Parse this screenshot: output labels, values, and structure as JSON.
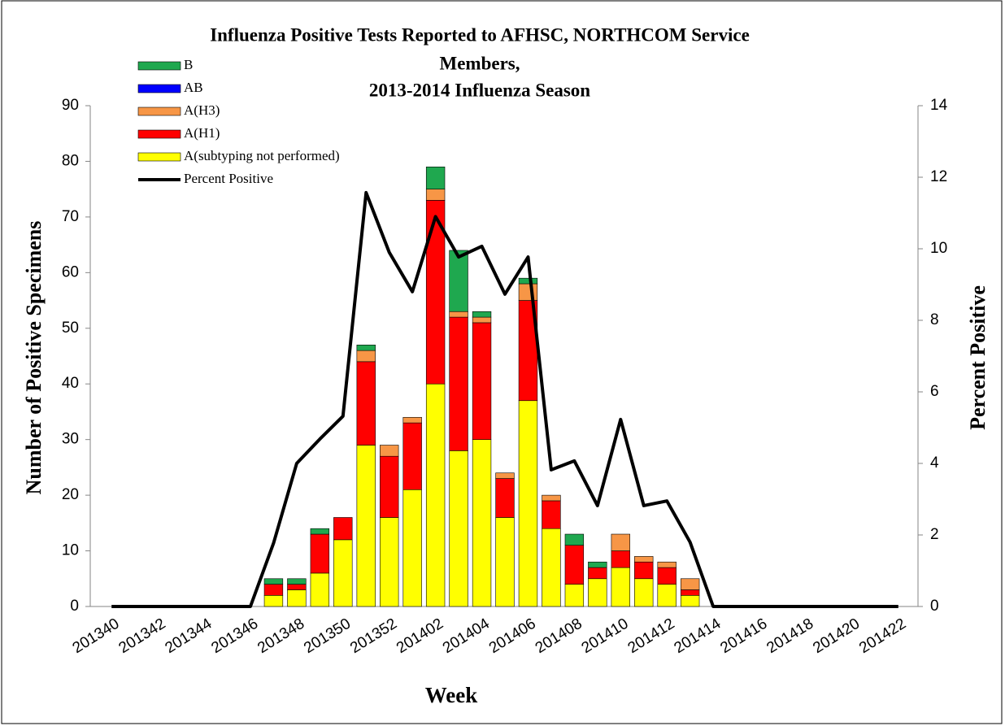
{
  "chart_data": {
    "type": "bar",
    "stacked": true,
    "title": [
      "Influenza Positive Tests Reported to AFHSC, NORTHCOM Service",
      "Members,",
      "2013-2014 Influenza Season"
    ],
    "xlabel": "Week",
    "ylabel": "Number of Positive Specimens",
    "y2label": "Percent Positive",
    "categories": [
      "201340",
      null,
      "201342",
      null,
      "201344",
      null,
      "201346",
      null,
      "201348",
      null,
      "201350",
      null,
      "201352",
      null,
      "201402",
      null,
      "201404",
      null,
      "201406",
      null,
      "201408",
      null,
      "201410",
      null,
      "201412",
      null,
      "201414",
      null,
      "201416",
      null,
      "201418",
      null,
      "201420",
      null,
      "201422"
    ],
    "series": [
      {
        "name": "A(subtyping not performed)",
        "color": "#ffff00",
        "values": [
          0,
          0,
          0,
          0,
          0,
          0,
          0,
          2,
          3,
          6,
          12,
          29,
          16,
          21,
          40,
          28,
          30,
          16,
          37,
          14,
          4,
          5,
          7,
          5,
          4,
          2,
          0,
          0,
          0,
          0,
          0,
          0,
          0,
          0,
          0
        ]
      },
      {
        "name": "A(H1)",
        "color": "#ff0000",
        "values": [
          0,
          0,
          0,
          0,
          0,
          0,
          0,
          2,
          1,
          7,
          4,
          15,
          11,
          12,
          33,
          24,
          21,
          7,
          18,
          5,
          7,
          2,
          3,
          3,
          3,
          1,
          0,
          0,
          0,
          0,
          0,
          0,
          0,
          0,
          0
        ]
      },
      {
        "name": "A(H3)",
        "color": "#f79646",
        "values": [
          0,
          0,
          0,
          0,
          0,
          0,
          0,
          0,
          0,
          0,
          0,
          2,
          2,
          1,
          2,
          1,
          1,
          1,
          3,
          1,
          0,
          0,
          3,
          1,
          1,
          2,
          0,
          0,
          0,
          0,
          0,
          0,
          0,
          0,
          0
        ]
      },
      {
        "name": "AB",
        "color": "#0000ff",
        "values": [
          0,
          0,
          0,
          0,
          0,
          0,
          0,
          0,
          0,
          0,
          0,
          0,
          0,
          0,
          0,
          0,
          0,
          0,
          0,
          0,
          0,
          0,
          0,
          0,
          0,
          0,
          0,
          0,
          0,
          0,
          0,
          0,
          0,
          0,
          0
        ]
      },
      {
        "name": "B",
        "color": "#1fa84f",
        "values": [
          0,
          0,
          0,
          0,
          0,
          0,
          0,
          1,
          1,
          1,
          0,
          1,
          0,
          0,
          4,
          11,
          1,
          0,
          1,
          0,
          2,
          1,
          0,
          0,
          0,
          0,
          0,
          0,
          0,
          0,
          0,
          0,
          0,
          0,
          0
        ]
      },
      {
        "name": "Percent Positive",
        "type": "line",
        "axis": "y2",
        "color": "#000000",
        "values": [
          0,
          0,
          0,
          0,
          0,
          0,
          0,
          1.77,
          4.0,
          4.68,
          5.32,
          11.57,
          9.9,
          8.8,
          10.9,
          9.77,
          10.07,
          8.73,
          9.77,
          3.82,
          4.07,
          2.82,
          5.23,
          2.82,
          2.95,
          1.8,
          0,
          0,
          0,
          0,
          0,
          0,
          0,
          0,
          0
        ]
      }
    ],
    "ylim": [
      0,
      90
    ],
    "yticks": [
      0,
      10,
      20,
      30,
      40,
      50,
      60,
      70,
      80,
      90
    ],
    "y2lim": [
      0,
      14
    ],
    "y2ticks": [
      0,
      2,
      4,
      6,
      8,
      10,
      12,
      14
    ],
    "legend": "upper left"
  }
}
